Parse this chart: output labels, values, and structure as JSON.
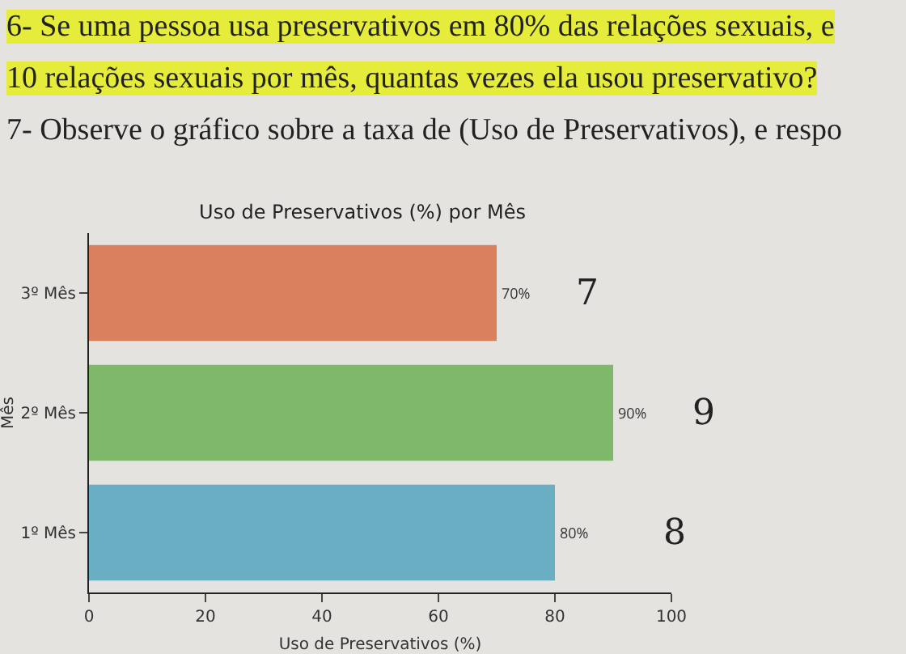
{
  "chart_data": {
    "type": "bar",
    "orientation": "horizontal",
    "title": "Uso de Preservativos (%) por Mês",
    "xlabel": "Uso de Preservativos (%)",
    "ylabel": "Mês",
    "categories": [
      "3º Mês",
      "2º Mês",
      "1º Mês"
    ],
    "values": [
      70,
      90,
      80
    ],
    "colors": [
      "#d9805f",
      "#7fb86a",
      "#6aaec4"
    ],
    "value_labels": [
      "70%",
      "90%",
      "80%"
    ],
    "xlim": [
      0,
      100
    ],
    "xticks": [
      0,
      20,
      40,
      60,
      80,
      100
    ],
    "grid": false,
    "annotations": [
      "6- Se uma pessoa usa preservativos em 80% das relações sexuais, e",
      "10 relações sexuais por mês, quantas vezes ela usou preservativo?",
      "7- Observe o gráfico sobre a taxa de (Uso de Preservativos), e respo",
      "7",
      "9",
      "8"
    ]
  }
}
